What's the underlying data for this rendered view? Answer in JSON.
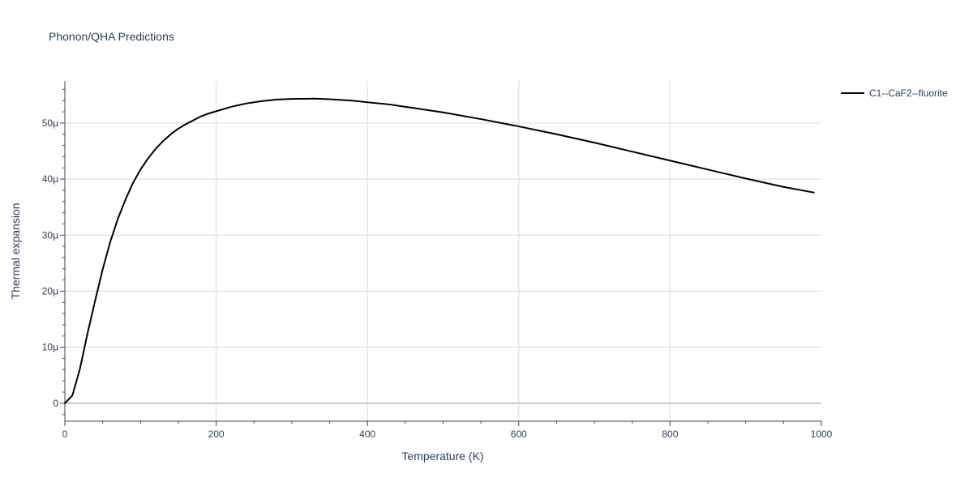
{
  "chart_data": {
    "type": "line",
    "title": "Phonon/QHA Predictions",
    "xlabel": "Temperature (K)",
    "ylabel": "Thermal expansion",
    "xlim": [
      0,
      1000
    ],
    "ylim": [
      -3.2e-06,
      5.75e-05
    ],
    "x_ticks": [
      0,
      200,
      400,
      600,
      800,
      1000
    ],
    "x_tick_labels": [
      "0",
      "200",
      "400",
      "600",
      "800",
      "1000"
    ],
    "y_ticks": [
      0,
      1e-05,
      2e-05,
      3e-05,
      4e-05,
      5e-05
    ],
    "y_tick_labels": [
      "0",
      "10μ",
      "20μ",
      "30μ",
      "40μ",
      "50μ"
    ],
    "grid": true,
    "legend_position": "top-right",
    "colors": {
      "series": "#000000",
      "text": "#2a3f5f",
      "grid": "#dcdcdc"
    },
    "series": [
      {
        "name": "C1--CaF2--fluorite",
        "color": "#000000",
        "x": [
          0,
          10,
          20,
          30,
          40,
          50,
          60,
          70,
          80,
          90,
          100,
          110,
          120,
          130,
          140,
          150,
          160,
          170,
          180,
          190,
          200,
          220,
          240,
          260,
          280,
          300,
          330,
          350,
          380,
          400,
          430,
          450,
          480,
          500,
          550,
          600,
          650,
          700,
          750,
          800,
          850,
          900,
          950,
          990
        ],
        "y": [
          0,
          1.4e-06,
          6.2e-06,
          1.25e-05,
          1.83e-05,
          2.39e-05,
          2.88e-05,
          3.29e-05,
          3.63e-05,
          3.93e-05,
          4.17e-05,
          4.37e-05,
          4.54e-05,
          4.68e-05,
          4.8e-05,
          4.9e-05,
          4.98e-05,
          5.05e-05,
          5.12e-05,
          5.17e-05,
          5.21e-05,
          5.29e-05,
          5.35e-05,
          5.39e-05,
          5.42e-05,
          5.43e-05,
          5.435e-05,
          5.425e-05,
          5.4e-05,
          5.37e-05,
          5.33e-05,
          5.29e-05,
          5.23e-05,
          5.19e-05,
          5.07e-05,
          4.94e-05,
          4.8e-05,
          4.65e-05,
          4.49e-05,
          4.33e-05,
          4.17e-05,
          4.01e-05,
          3.86e-05,
          3.76e-05
        ]
      }
    ]
  }
}
